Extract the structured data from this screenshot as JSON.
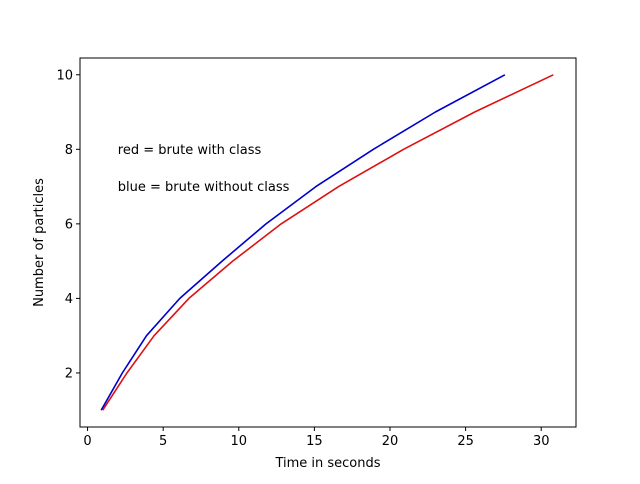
{
  "chart_data": {
    "type": "line",
    "title": "",
    "xlabel": "Time in seconds",
    "ylabel": "Number of particles",
    "xlim": [
      -0.5,
      32.3
    ],
    "ylim": [
      0.55,
      10.45
    ],
    "xticks": [
      0,
      5,
      10,
      15,
      20,
      25,
      30
    ],
    "yticks": [
      2,
      4,
      6,
      8,
      10
    ],
    "grid": false,
    "annotations": [
      {
        "text": "red = brute with class",
        "x": 2.0,
        "y": 8.0
      },
      {
        "text": "blue = brute without class",
        "x": 2.0,
        "y": 7.0
      }
    ],
    "series": [
      {
        "color": "#0000cc",
        "x": [
          0.9,
          2.3,
          3.9,
          6.1,
          8.9,
          11.8,
          15.1,
          18.9,
          23.0,
          27.6
        ],
        "y": [
          1,
          2,
          3,
          4,
          5,
          6,
          7,
          8,
          9,
          10
        ]
      },
      {
        "color": "#dd1111",
        "x": [
          1.0,
          2.6,
          4.4,
          6.7,
          9.6,
          12.8,
          16.6,
          20.9,
          25.6,
          30.8
        ],
        "y": [
          1,
          2,
          3,
          4,
          5,
          6,
          7,
          8,
          9,
          10
        ]
      }
    ]
  }
}
